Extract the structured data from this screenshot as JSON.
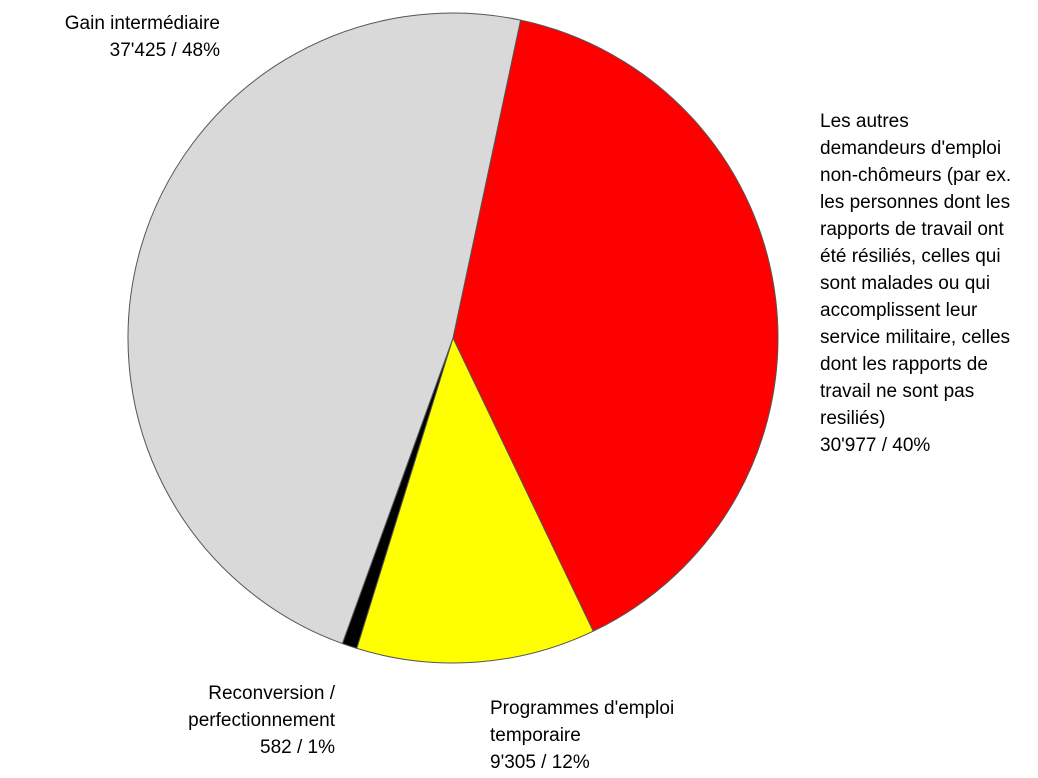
{
  "chart_data": {
    "type": "pie",
    "categories": [
      "Les autres demandeurs d'emploi non-chômeurs (par ex. les personnes dont les rapports de travail ont été résiliés, celles qui sont malades ou qui accomplissent leur service militaire, celles dont les rapports de travail ne sont pas resiliés)",
      "Programmes d'emploi temporaire",
      "Reconversion / perfectionnement",
      "Gain intermédiaire"
    ],
    "values": [
      30977,
      9305,
      582,
      37425
    ],
    "value_labels": [
      "30'977  /  40%",
      "9'305  /  12%",
      "582  /  1%",
      "37'425  /  48%"
    ],
    "colors": [
      "#ff0000",
      "#ffff00",
      "#000000",
      "#d9d9d9"
    ]
  }
}
